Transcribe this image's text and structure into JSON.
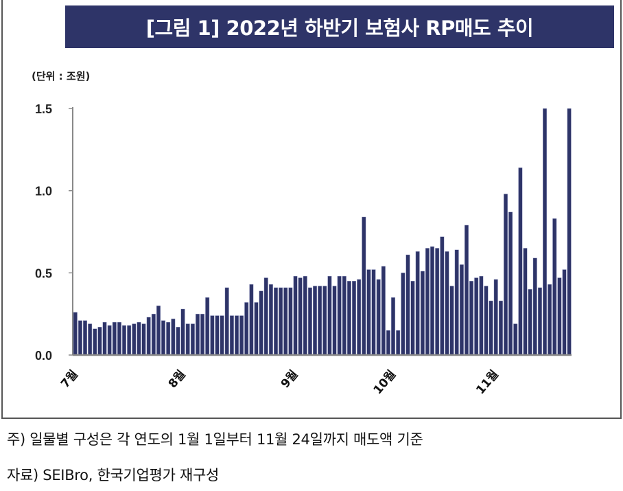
{
  "chart_data": {
    "type": "bar",
    "title": "[그림 1] 2022년 하반기 보험사 RP매도 추이",
    "unit_label": "(단위 : 조원)",
    "xlabel": "",
    "ylabel": "",
    "ylim": [
      0,
      1.5
    ],
    "yticks": [
      "0.0",
      "0.5",
      "1.0",
      "1.5"
    ],
    "ytick_values": [
      0,
      0.5,
      1.0,
      1.5
    ],
    "color": "#2e3468",
    "month_labels": [
      {
        "label": "7월",
        "index": 0
      },
      {
        "label": "8월",
        "index": 22
      },
      {
        "label": "9월",
        "index": 45
      },
      {
        "label": "10월",
        "index": 65
      },
      {
        "label": "11월",
        "index": 86
      }
    ],
    "values": [
      0.26,
      0.21,
      0.21,
      0.19,
      0.16,
      0.17,
      0.2,
      0.18,
      0.2,
      0.2,
      0.18,
      0.18,
      0.19,
      0.2,
      0.19,
      0.23,
      0.25,
      0.3,
      0.21,
      0.2,
      0.22,
      0.17,
      0.28,
      0.19,
      0.19,
      0.25,
      0.25,
      0.35,
      0.24,
      0.24,
      0.24,
      0.41,
      0.24,
      0.24,
      0.24,
      0.32,
      0.43,
      0.32,
      0.39,
      0.47,
      0.43,
      0.41,
      0.41,
      0.41,
      0.41,
      0.48,
      0.47,
      0.48,
      0.41,
      0.42,
      0.42,
      0.42,
      0.48,
      0.42,
      0.48,
      0.48,
      0.45,
      0.45,
      0.46,
      0.84,
      0.52,
      0.52,
      0.46,
      0.54,
      0.15,
      0.35,
      0.15,
      0.5,
      0.61,
      0.45,
      0.63,
      0.51,
      0.65,
      0.66,
      0.65,
      0.72,
      0.63,
      0.42,
      0.64,
      0.55,
      0.79,
      0.45,
      0.47,
      0.48,
      0.42,
      0.33,
      0.46,
      0.33,
      0.98,
      0.87,
      0.19,
      1.14,
      0.65,
      0.4,
      0.59,
      0.41,
      1.5,
      0.43,
      0.83,
      0.47,
      0.52,
      1.5
    ]
  },
  "notes": {
    "note": "주) 일물별 구성은 각 연도의 1월 1일부터 11월 24일까지 매도액 기준",
    "source": "자료) SEIBro, 한국기업평가 재구성"
  }
}
